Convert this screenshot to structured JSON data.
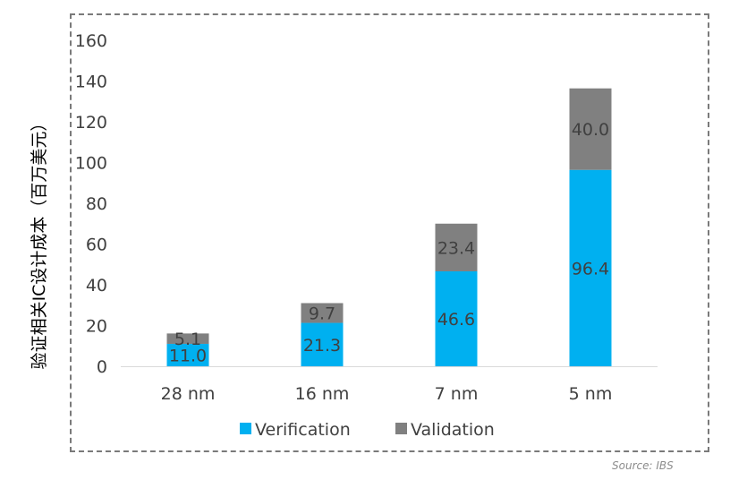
{
  "chart_data": {
    "type": "bar",
    "stacked": true,
    "title": "",
    "xlabel": "",
    "ylabel": "验证相关IC设计成本（百万美元）",
    "categories": [
      "28 nm",
      "16 nm",
      "7 nm",
      "5 nm"
    ],
    "series": [
      {
        "name": "Verification",
        "values": [
          11.0,
          21.3,
          46.6,
          96.4
        ],
        "labels": [
          "11.0",
          "21.3",
          "46.6",
          "96.4"
        ],
        "color": "#00b0f0"
      },
      {
        "name": "Validation",
        "values": [
          5.1,
          9.7,
          23.4,
          40.0
        ],
        "labels": [
          "5.1",
          "9.7",
          "23.4",
          "40.0"
        ],
        "color": "#808080"
      }
    ],
    "ylim": [
      0,
      160
    ],
    "yticks": [
      "0",
      "20",
      "40",
      "60",
      "80",
      "100",
      "120",
      "140",
      "160"
    ],
    "grid": false,
    "legend_position": "bottom"
  },
  "source": "Source:  IBS"
}
